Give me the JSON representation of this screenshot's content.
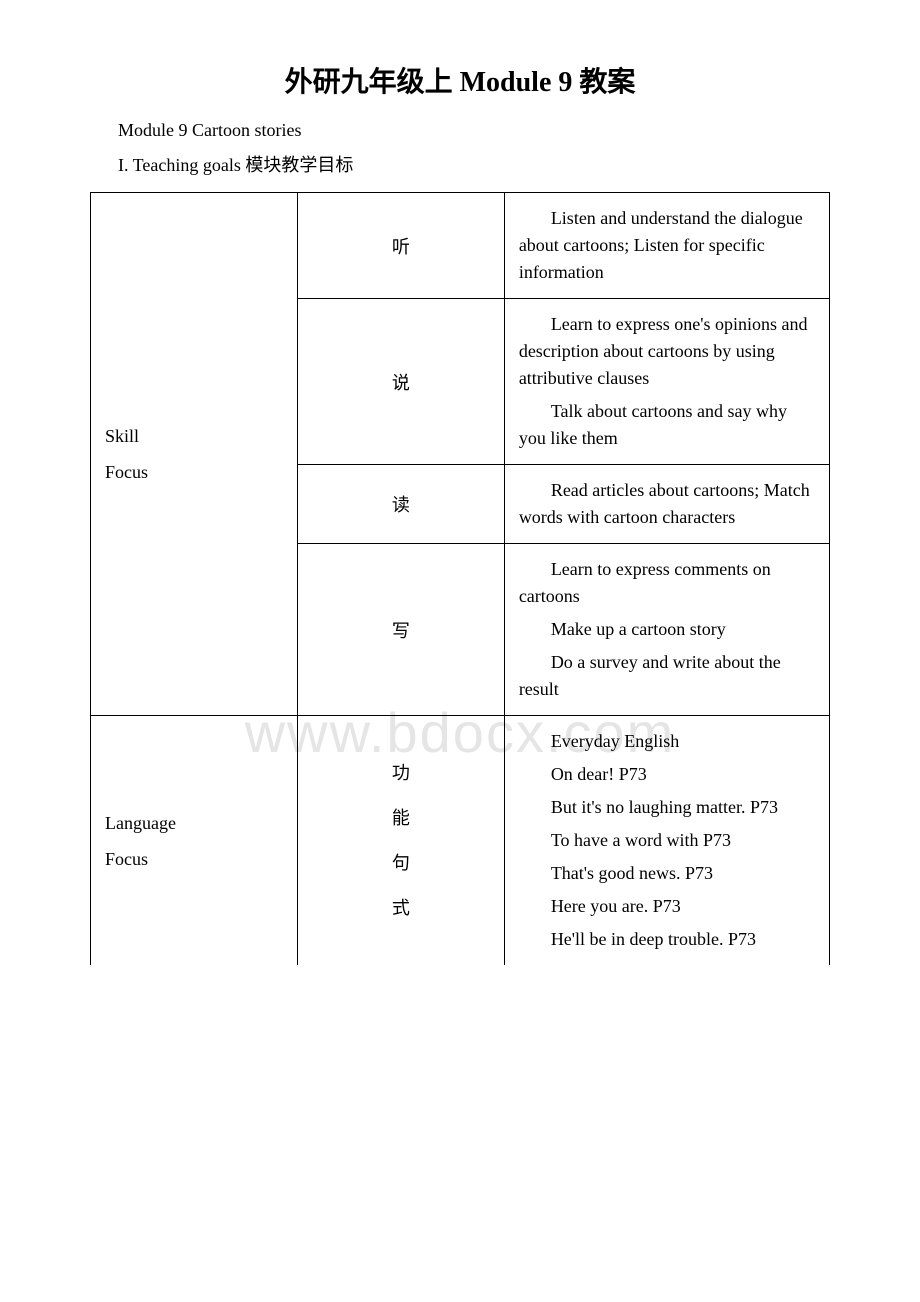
{
  "title": "外研九年级上 Module 9 教案",
  "subtitle": "Module 9 Cartoon stories",
  "sectionHeading": "I. Teaching goals 模块教学目标",
  "watermark": "www.bdocx.com",
  "skillFocus": {
    "label1": "Skill",
    "label2": "Focus",
    "rows": {
      "listen": {
        "label": "听",
        "para1": "Listen and understand the dialogue about cartoons; Listen for specific information"
      },
      "speak": {
        "label": "说",
        "para1": "Learn to express one's opinions and description about cartoons by using attributive clauses",
        "para2": "Talk about cartoons and say why you like them"
      },
      "read": {
        "label": "读",
        "para1": "Read articles about cartoons; Match words with cartoon characters"
      },
      "write": {
        "label": "写",
        "para1": "Learn to express comments on cartoons",
        "para2": "Make up a cartoon story",
        "para3": "Do a survey and write about the result"
      }
    }
  },
  "languageFocus": {
    "label1": "Language",
    "label2": "Focus",
    "col2": {
      "line1": "功",
      "line2": "能",
      "line3": "句",
      "line4": "式"
    },
    "paras": {
      "p1": "Everyday English",
      "p2": "On dear! P73",
      "p3": "But it's no laughing matter. P73",
      "p4": "To have a word with P73",
      "p5": "That's good news. P73",
      "p6": "Here you are. P73",
      "p7": "He'll be in deep trouble. P73"
    }
  }
}
